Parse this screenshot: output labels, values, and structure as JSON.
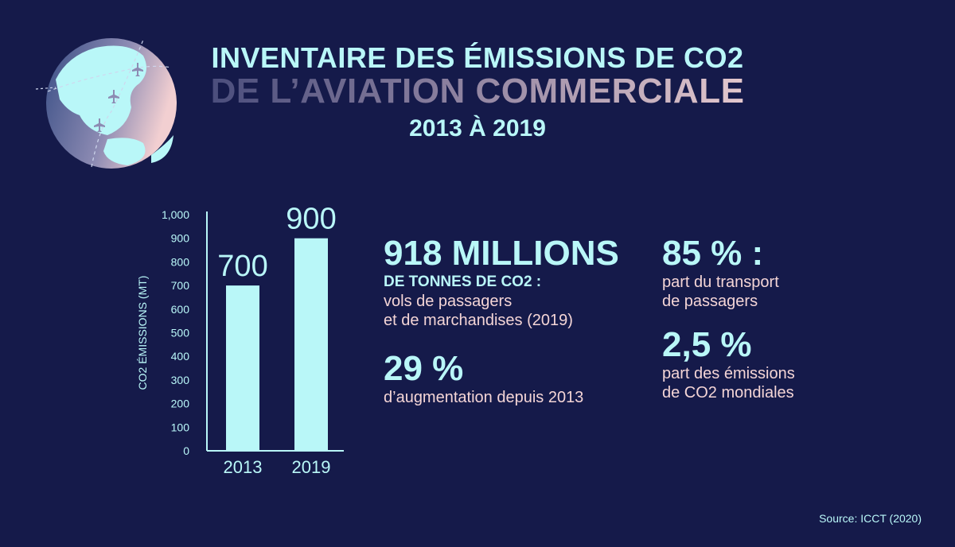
{
  "title": {
    "line1": "INVENTAIRE DES ÉMISSIONS DE CO2",
    "line2": "DE L’AVIATION COMMERCIALE",
    "line3": "2013 À 2019"
  },
  "chart_data": {
    "type": "bar",
    "categories": [
      "2013",
      "2019"
    ],
    "values": [
      700,
      900
    ],
    "data_labels": [
      "700",
      "900"
    ],
    "ylabel": "CO2 ÉMISSIONS (MT)",
    "ylim": [
      0,
      1000
    ],
    "yticks": [
      "0",
      "100",
      "200",
      "300",
      "400",
      "500",
      "600",
      "700",
      "800",
      "900",
      "1,000"
    ],
    "bar_color": "#b9f7f8",
    "grid": false
  },
  "stats": {
    "s1": {
      "big": "918 MILLIONS",
      "sub": "DE TONNES DE CO2 :",
      "line1": "vols de passagers",
      "line2": "et de marchandises (2019)"
    },
    "s2": {
      "big": "29 %",
      "line1": "d’augmentation depuis 2013"
    },
    "s3": {
      "big": "85 % :",
      "line1": "part du transport",
      "line2": "de passagers"
    },
    "s4": {
      "big": "2,5 %",
      "line1": "part des émissions",
      "line2": "de CO2 mondiales"
    }
  },
  "source": "Source: ICCT (2020)",
  "colors": {
    "background": "#151a4a",
    "accent": "#b9f7f8",
    "pink": "#f4d5d6"
  }
}
